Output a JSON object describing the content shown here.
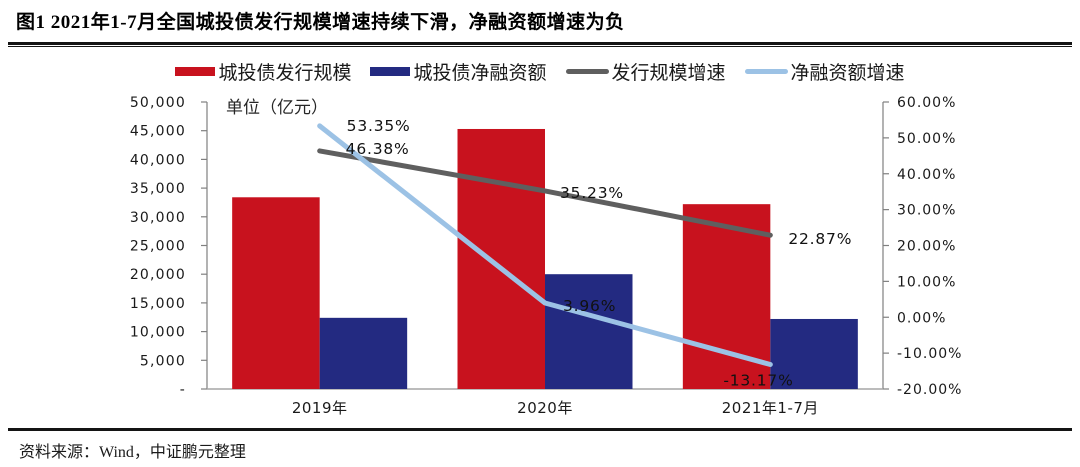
{
  "figure": {
    "title": "图1 2021年1-7月全国城投债发行规模增速持续下滑，净融资额增速为负",
    "source": "资料来源：Wind，中证鹏元整理"
  },
  "chart_data": {
    "type": "bar",
    "subtype": "dual-axis bar + line combo",
    "categories": [
      "2019年",
      "2020年",
      "2021年1-7月"
    ],
    "bar_series": [
      {
        "key": "issuance",
        "name": "城投债发行规模",
        "color": "#C8121E",
        "axis": "left",
        "values": [
          33400,
          45300,
          32200
        ]
      },
      {
        "key": "net-financing",
        "name": "城投债净融资额",
        "color": "#232A81",
        "axis": "left",
        "values": [
          12400,
          20000,
          12200
        ]
      }
    ],
    "line_series": [
      {
        "key": "issuance-growth",
        "name": "发行规模增速",
        "color": "#5F5F5F",
        "axis": "right",
        "values": [
          46.38,
          35.23,
          22.87
        ],
        "point_labels": [
          "46.38%",
          "35.23%",
          "22.87%"
        ]
      },
      {
        "key": "net-financing-growth",
        "name": "净融资额增速",
        "color": "#9CC2E5",
        "axis": "right",
        "values": [
          53.35,
          3.96,
          -13.17
        ],
        "point_labels": [
          "53.35%",
          "3.96%",
          "-13.17%"
        ]
      }
    ],
    "left_axis": {
      "title": "单位（亿元）",
      "min": 0,
      "max": 50000,
      "step": 5000,
      "tick_labels": [
        "50,000",
        "45,000",
        "40,000",
        "35,000",
        "30,000",
        "25,000",
        "20,000",
        "15,000",
        "10,000",
        "5,000",
        "-"
      ]
    },
    "right_axis": {
      "min": -20,
      "max": 60,
      "step": 10,
      "tick_labels": [
        "60.00%",
        "50.00%",
        "40.00%",
        "30.00%",
        "20.00%",
        "10.00%",
        "0.00%",
        "-10.00%",
        "-20.00%"
      ]
    },
    "grid": false,
    "legend_position": "top-center"
  }
}
